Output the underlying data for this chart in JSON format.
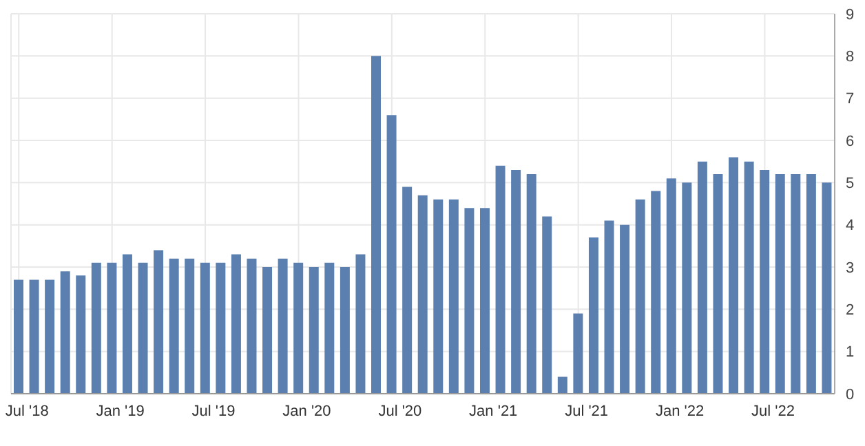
{
  "chart_data": {
    "type": "bar",
    "categories": [
      "Jul '18",
      null,
      null,
      null,
      null,
      null,
      "Jan '19",
      null,
      null,
      null,
      null,
      null,
      "Jul '19",
      null,
      null,
      null,
      null,
      null,
      "Jan '20",
      null,
      null,
      null,
      null,
      null,
      "Jul '20",
      null,
      null,
      null,
      null,
      null,
      "Jan '21",
      null,
      null,
      null,
      null,
      null,
      "Jul '21",
      null,
      null,
      null,
      null,
      null,
      "Jan '22",
      null,
      null,
      null,
      null,
      null,
      "Jul '22",
      null,
      null,
      null,
      null
    ],
    "values": [
      2.7,
      2.7,
      2.7,
      2.9,
      2.8,
      3.1,
      3.1,
      3.3,
      3.1,
      3.4,
      3.2,
      3.2,
      3.1,
      3.1,
      3.3,
      3.2,
      3.0,
      3.2,
      3.1,
      3.0,
      3.1,
      3.0,
      3.3,
      8.0,
      6.6,
      4.9,
      4.7,
      4.6,
      4.6,
      4.4,
      4.4,
      5.4,
      5.3,
      5.2,
      4.2,
      0.4,
      1.9,
      3.7,
      4.1,
      4.0,
      4.6,
      4.8,
      5.1,
      5.0,
      5.5,
      5.2,
      5.6,
      5.5,
      5.3,
      5.2,
      5.2,
      5.2,
      5.0
    ],
    "color": "#5b80b0",
    "ylim": [
      0,
      9
    ],
    "yticks": [
      0,
      1,
      2,
      3,
      4,
      5,
      6,
      7,
      8,
      9
    ],
    "grid": true
  }
}
